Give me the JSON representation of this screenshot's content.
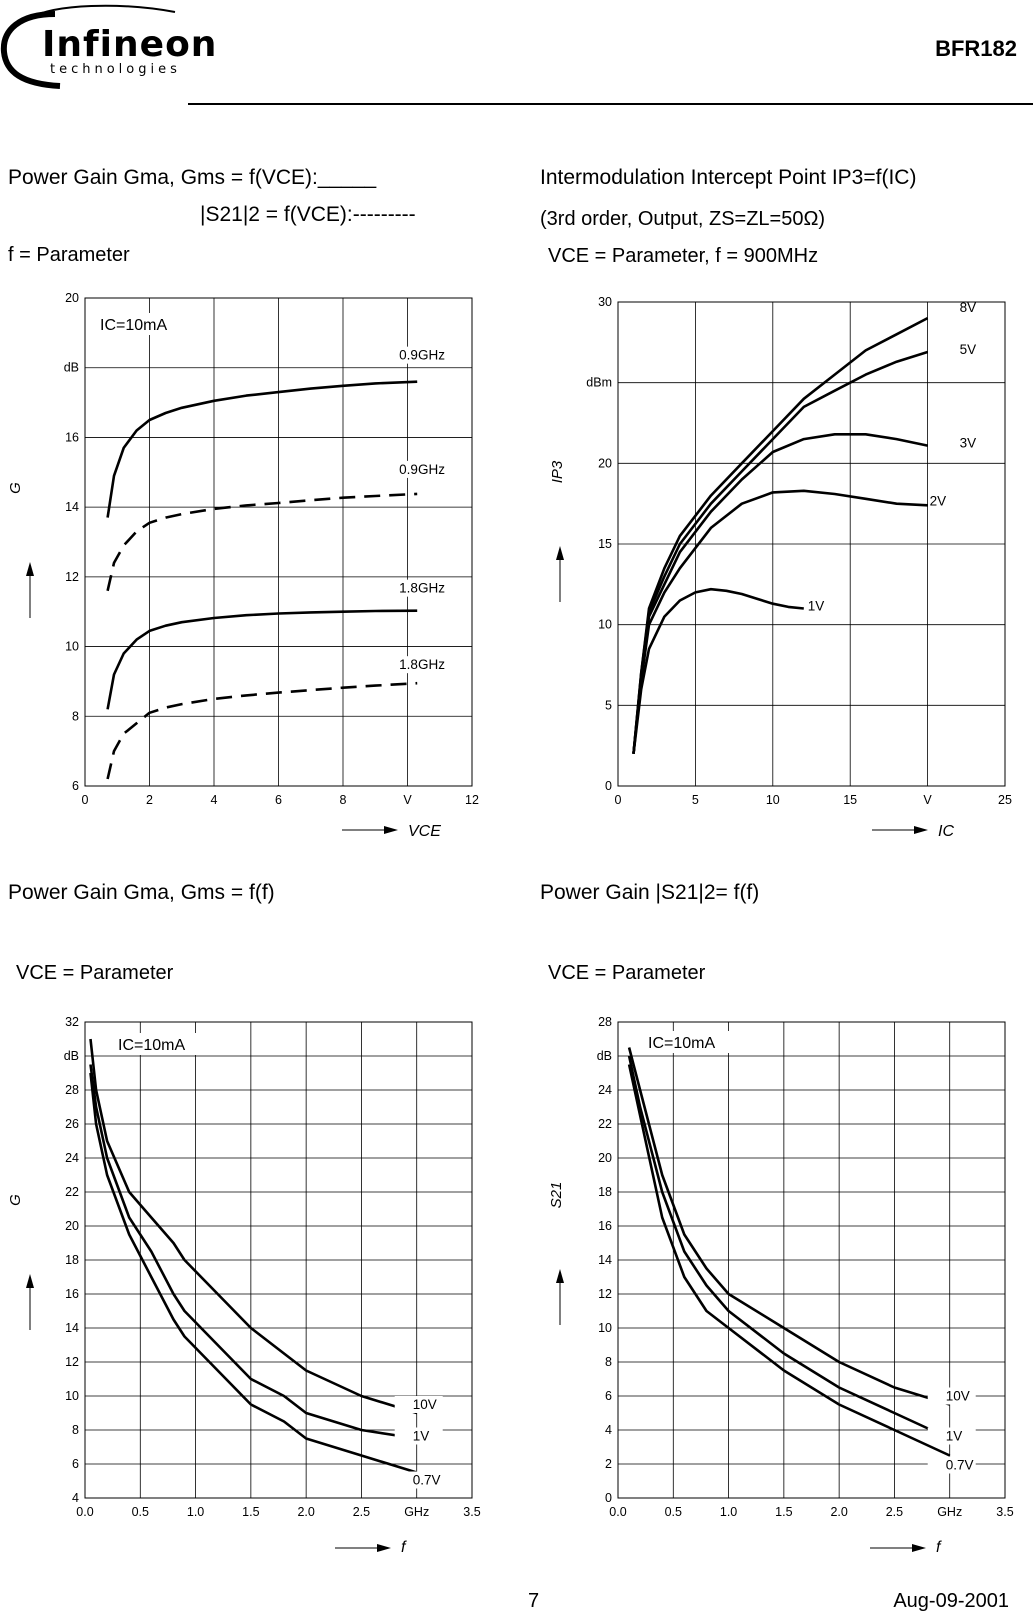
{
  "header": {
    "logo_word": "Infineon",
    "logo_sub": "technologies",
    "part_number": "BFR182"
  },
  "titles": {
    "tl_line1": "Power Gain Gma, Gms = f(VCE):_____",
    "tl_line2": "|S21|2 = f(VCE):---------",
    "tl_line3": "f = Parameter",
    "tr_line1": "Intermodulation Intercept Point IP3=f(IC)",
    "tr_line2": "(3rd order, Output, ZS=ZL=50Ω)",
    "tr_line3": "VCE = Parameter, f = 900MHz",
    "bl_line1": "Power Gain Gma, Gms = f(f)",
    "bl_line2": "VCE = Parameter",
    "br_line1": "Power Gain |S21|2= f(f)",
    "br_line2": "VCE = Parameter"
  },
  "footer": {
    "page": "7",
    "date": "Aug-09-2001"
  },
  "chart_data": [
    {
      "id": "gain-vs-vce",
      "type": "line",
      "annotation": "IC=10mA",
      "ylabel": "G",
      "yunit": "dB",
      "xlabel": "VCE",
      "xunit": "V",
      "xlim": [
        0,
        12
      ],
      "ylim": [
        6,
        20
      ],
      "xticks": [
        "0",
        "2",
        "4",
        "6",
        "8",
        "V",
        "12"
      ],
      "yticks": [
        "6",
        "8",
        "10",
        "12",
        "14",
        "16",
        "dB",
        "20"
      ],
      "series": [
        {
          "name": "0.9GHz",
          "style": "solid",
          "x": [
            0.7,
            0.9,
            1.2,
            1.6,
            2.0,
            2.5,
            3,
            4,
            5,
            6,
            7,
            8,
            9,
            10.3
          ],
          "y": [
            13.7,
            14.9,
            15.7,
            16.2,
            16.5,
            16.7,
            16.85,
            17.05,
            17.2,
            17.3,
            17.4,
            17.48,
            17.55,
            17.6
          ]
        },
        {
          "name": "0.9GHz",
          "style": "dashed",
          "x": [
            0.7,
            0.9,
            1.2,
            1.6,
            2.0,
            2.5,
            3,
            4,
            5,
            6,
            7,
            8,
            9,
            10.3
          ],
          "y": [
            11.6,
            12.4,
            12.9,
            13.3,
            13.55,
            13.7,
            13.8,
            13.95,
            14.05,
            14.12,
            14.2,
            14.27,
            14.32,
            14.38
          ]
        },
        {
          "name": "1.8GHz",
          "style": "solid",
          "x": [
            0.7,
            0.9,
            1.2,
            1.6,
            2.0,
            2.5,
            3,
            4,
            5,
            6,
            7,
            8,
            9,
            10.3
          ],
          "y": [
            8.2,
            9.2,
            9.8,
            10.2,
            10.45,
            10.6,
            10.7,
            10.82,
            10.9,
            10.95,
            10.98,
            11.0,
            11.02,
            11.03
          ]
        },
        {
          "name": "1.8GHz",
          "style": "dashed",
          "x": [
            0.7,
            0.9,
            1.2,
            1.6,
            2.0,
            2.5,
            3,
            4,
            5,
            6,
            7,
            8,
            9,
            10.3
          ],
          "y": [
            6.2,
            7.0,
            7.5,
            7.8,
            8.1,
            8.25,
            8.35,
            8.5,
            8.6,
            8.68,
            8.75,
            8.82,
            8.88,
            8.95
          ]
        }
      ]
    },
    {
      "id": "ip3-vs-ic",
      "type": "line",
      "ylabel": "IP3",
      "yunit": "dBm",
      "xlabel": "IC",
      "xunit": "V",
      "xlim": [
        0,
        25
      ],
      "ylim": [
        0,
        30
      ],
      "xticks": [
        "0",
        "5",
        "10",
        "15",
        "V",
        "25"
      ],
      "yticks": [
        "0",
        "5",
        "10",
        "15",
        "20",
        "dBm",
        "30"
      ],
      "series": [
        {
          "name": "8V",
          "x": [
            1,
            1.5,
            2,
            3,
            4,
            6,
            8,
            10,
            12,
            14,
            16,
            18,
            20
          ],
          "y": [
            2,
            7,
            11,
            13.5,
            15.5,
            18,
            20,
            22,
            24,
            25.5,
            27,
            28,
            29
          ]
        },
        {
          "name": "5V",
          "x": [
            1,
            1.5,
            2,
            3,
            4,
            6,
            8,
            10,
            12,
            14,
            16,
            18,
            20
          ],
          "y": [
            2,
            7,
            10.8,
            13,
            15,
            17.5,
            19.5,
            21.5,
            23.5,
            24.5,
            25.5,
            26.3,
            26.9
          ]
        },
        {
          "name": "3V",
          "x": [
            1,
            1.5,
            2,
            3,
            4,
            6,
            8,
            10,
            12,
            14,
            16,
            18,
            20
          ],
          "y": [
            2,
            6.8,
            10.5,
            12.5,
            14.5,
            17,
            19,
            20.7,
            21.5,
            21.8,
            21.8,
            21.5,
            21.1
          ]
        },
        {
          "name": "2V",
          "x": [
            1,
            1.5,
            2,
            3,
            4,
            6,
            8,
            10,
            12,
            14,
            16,
            18,
            20
          ],
          "y": [
            2,
            6.5,
            10,
            12,
            13.5,
            16,
            17.5,
            18.2,
            18.3,
            18.1,
            17.8,
            17.5,
            17.4
          ]
        },
        {
          "name": "1V",
          "x": [
            1,
            1.5,
            2,
            3,
            4,
            5,
            6,
            7,
            8,
            9,
            10,
            11,
            12
          ],
          "y": [
            2,
            6,
            8.5,
            10.5,
            11.5,
            12,
            12.2,
            12.1,
            11.9,
            11.6,
            11.3,
            11.1,
            11.0
          ]
        }
      ]
    },
    {
      "id": "gain-vs-freq",
      "type": "line",
      "annotation": "IC=10mA",
      "ylabel": "G",
      "yunit": "dB",
      "xlabel": "f",
      "xunit": "GHz",
      "xlim": [
        0,
        3.5
      ],
      "ylim": [
        4,
        32
      ],
      "xticks": [
        "0.0",
        "0.5",
        "1.0",
        "1.5",
        "2.0",
        "2.5",
        "GHz",
        "3.5"
      ],
      "yticks": [
        "4",
        "6",
        "8",
        "10",
        "12",
        "14",
        "16",
        "18",
        "20",
        "22",
        "24",
        "26",
        "28",
        "dB",
        "32"
      ],
      "series": [
        {
          "name": "10V",
          "x": [
            0.05,
            0.1,
            0.2,
            0.4,
            0.6,
            0.8,
            0.9,
            1.2,
            1.5,
            1.8,
            2.0,
            2.5,
            3.0
          ],
          "y": [
            31,
            28,
            25,
            22,
            20.5,
            19,
            18,
            16,
            14,
            12.5,
            11.5,
            10,
            9
          ]
        },
        {
          "name": "1V",
          "x": [
            0.05,
            0.1,
            0.2,
            0.4,
            0.6,
            0.8,
            0.9,
            1.2,
            1.5,
            1.8,
            2.0,
            2.5,
            3.0
          ],
          "y": [
            29.5,
            27,
            24,
            20.5,
            18.5,
            16,
            15,
            13,
            11,
            10,
            9,
            8,
            7.5
          ]
        },
        {
          "name": "0.7V",
          "x": [
            0.05,
            0.1,
            0.2,
            0.4,
            0.6,
            0.8,
            0.9,
            1.2,
            1.5,
            1.8,
            2.0,
            2.5,
            3.0
          ],
          "y": [
            29,
            26,
            23,
            19.5,
            17,
            14.5,
            13.5,
            11.5,
            9.5,
            8.5,
            7.5,
            6.5,
            5.5
          ]
        }
      ]
    },
    {
      "id": "s21-vs-freq",
      "type": "line",
      "annotation": "IC=10mA",
      "ylabel": "S21",
      "yunit": "dB",
      "xlabel": "f",
      "xunit": "GHz",
      "xlim": [
        0,
        3.5
      ],
      "ylim": [
        0,
        28
      ],
      "xticks": [
        "0.0",
        "0.5",
        "1.0",
        "1.5",
        "2.0",
        "2.5",
        "GHz",
        "3.5"
      ],
      "yticks": [
        "0",
        "2",
        "4",
        "6",
        "8",
        "10",
        "12",
        "14",
        "16",
        "18",
        "20",
        "22",
        "24",
        "dB",
        "28"
      ],
      "series": [
        {
          "name": "10V",
          "x": [
            0.1,
            0.2,
            0.4,
            0.6,
            0.8,
            1.0,
            1.5,
            2.0,
            2.5,
            3.0
          ],
          "y": [
            26.5,
            24,
            19,
            15.5,
            13.5,
            12,
            10,
            8,
            6.5,
            5.5
          ]
        },
        {
          "name": "1V",
          "x": [
            0.1,
            0.2,
            0.4,
            0.6,
            0.8,
            1.0,
            1.5,
            2.0,
            2.5,
            3.0
          ],
          "y": [
            26,
            23,
            18,
            14.5,
            12.5,
            11,
            8.5,
            6.5,
            5,
            3.5
          ]
        },
        {
          "name": "0.7V",
          "x": [
            0.1,
            0.2,
            0.4,
            0.6,
            0.8,
            1.0,
            1.5,
            2.0,
            2.5,
            3.0
          ],
          "y": [
            25.5,
            22.5,
            16.5,
            13,
            11,
            10,
            7.5,
            5.5,
            4,
            2.5
          ]
        }
      ]
    }
  ]
}
